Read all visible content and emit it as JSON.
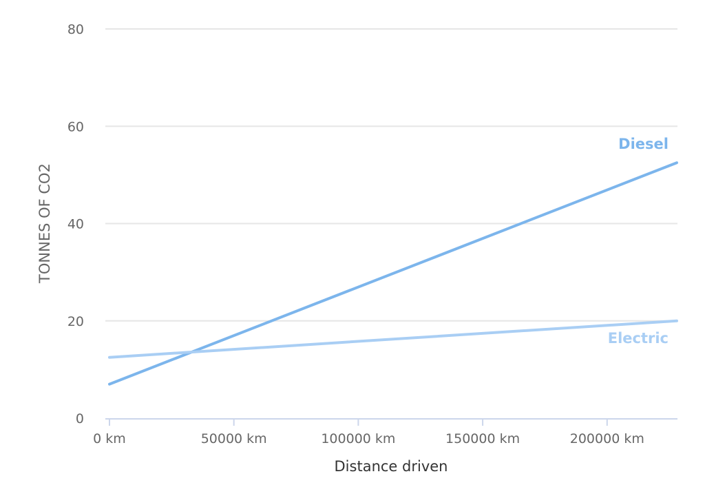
{
  "chart_data": {
    "type": "line",
    "xlabel": "Distance driven",
    "ylabel": "TONNES OF CO2",
    "x_unit_suffix": " km",
    "xlim": [
      0,
      228000
    ],
    "ylim": [
      0,
      80
    ],
    "x_ticks": [
      0,
      50000,
      100000,
      150000,
      200000
    ],
    "y_ticks": [
      0,
      20,
      40,
      60,
      80
    ],
    "x_tick_labels": [
      "0 km",
      "50000 km",
      "100000 km",
      "150000 km",
      "200000 km"
    ],
    "y_tick_labels": [
      "0",
      "20",
      "40",
      "60",
      "80"
    ],
    "grid": true,
    "series": [
      {
        "name": "Diesel",
        "color": "#7cb5ec",
        "x": [
          0,
          228000
        ],
        "y": [
          7,
          52.5
        ]
      },
      {
        "name": "Electric",
        "color": "#a9cef4",
        "x": [
          0,
          228000
        ],
        "y": [
          12.5,
          20
        ]
      }
    ]
  }
}
